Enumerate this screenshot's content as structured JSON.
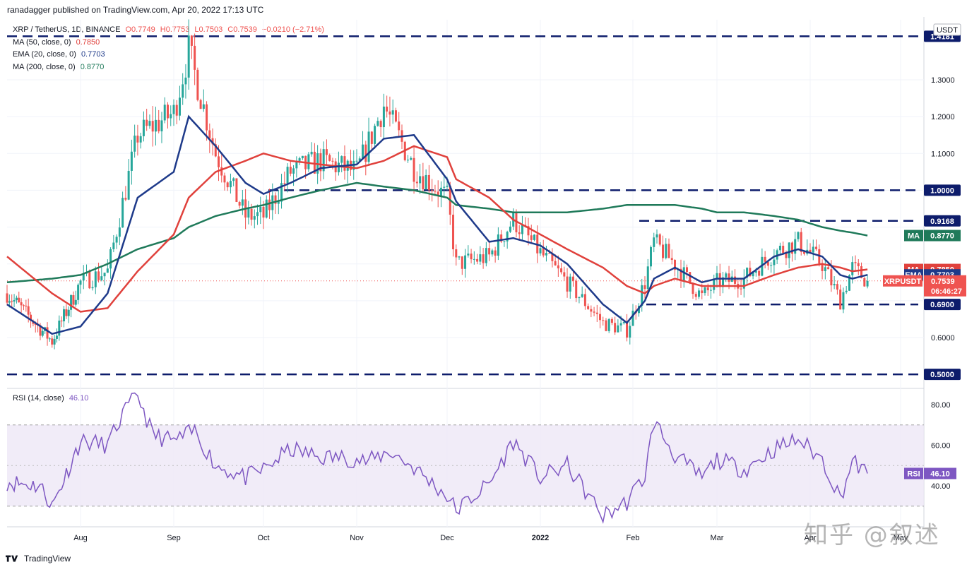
{
  "header": {
    "publisher": "ranadagger published on TradingView.com, Apr 20, 2022 17:13 UTC"
  },
  "legend": {
    "symbol": "XRP / TetherUS, 1D, BINANCE",
    "open": "O0.7749",
    "high": "H0.7753",
    "low": "L0.7503",
    "close": "C0.7539",
    "change": "−0.0210 (−2.71%)",
    "ma50": {
      "label": "MA (50, close, 0)",
      "value": "0.7850"
    },
    "ema20": {
      "label": "EMA (20, close, 0)",
      "value": "0.7703"
    },
    "ma200": {
      "label": "MA (200, close, 0)",
      "value": "0.8770"
    }
  },
  "currency_tag": "USDT",
  "rsi_legend": {
    "label": "RSI (14, close)",
    "value": "46.10"
  },
  "footer": {
    "brand": "TradingView"
  },
  "watermark": "知乎 @叙述",
  "colors": {
    "up": "#26a69a",
    "down": "#ef5350",
    "ema20": "#1e3a8a",
    "ma50": "#e0413c",
    "ma200": "#1f7a5a",
    "rsi": "#7e57c2",
    "rsi_band": "#ede7f6",
    "level_line": "#0d1c6b"
  },
  "chart_data": [
    {
      "type": "candlestick",
      "title": "XRP / TetherUS, 1D, BINANCE",
      "ylim": [
        0.47,
        1.43
      ],
      "y_ticks": [
        "1.3000",
        "1.2000",
        "1.1000",
        "1.0000",
        "0.6000"
      ],
      "x_ticks": [
        "Aug",
        "Sep",
        "Oct",
        "Nov",
        "Dec",
        "2022",
        "Feb",
        "Mar",
        "Apr",
        "May"
      ],
      "horizontal_levels": [
        {
          "value": 1.4181,
          "label": "1.4181"
        },
        {
          "value": 1.0,
          "label": "1.0000"
        },
        {
          "value": 0.9168,
          "label": "0.9168"
        },
        {
          "value": 0.69,
          "label": "0.6900"
        },
        {
          "value": 0.5,
          "label": "0.5000"
        }
      ],
      "price_tags": [
        {
          "name": "MA",
          "value": "0.8770",
          "series": "ma200"
        },
        {
          "name": "MA",
          "value": "0.7850",
          "series": "ma50"
        },
        {
          "name": "EMA",
          "value": "0.7703",
          "series": "ema20"
        },
        {
          "name": "XRPUSDT",
          "value": "0.7539",
          "countdown": "06:46:27",
          "series": "price"
        }
      ],
      "series_anchor_dates": [
        "2021-07-01",
        "2021-07-20",
        "2021-08-01",
        "2021-08-10",
        "2021-08-20",
        "2021-09-01",
        "2021-09-06",
        "2021-09-15",
        "2021-09-25",
        "2021-10-01",
        "2021-10-10",
        "2021-10-20",
        "2021-11-01",
        "2021-11-10",
        "2021-11-20",
        "2021-12-01",
        "2021-12-04",
        "2021-12-15",
        "2021-12-23",
        "2022-01-01",
        "2022-01-10",
        "2022-01-22",
        "2022-01-30",
        "2022-02-05",
        "2022-02-08",
        "2022-02-15",
        "2022-02-24",
        "2022-03-01",
        "2022-03-10",
        "2022-03-20",
        "2022-03-28",
        "2022-04-05",
        "2022-04-11",
        "2022-04-15",
        "2022-04-20"
      ],
      "close_series": [
        0.72,
        0.59,
        0.75,
        0.78,
        1.15,
        1.21,
        1.38,
        1.1,
        0.93,
        0.93,
        1.05,
        1.08,
        1.05,
        1.23,
        1.06,
        0.98,
        0.8,
        0.82,
        0.92,
        0.83,
        0.75,
        0.64,
        0.62,
        0.75,
        0.86,
        0.8,
        0.71,
        0.75,
        0.76,
        0.83,
        0.86,
        0.8,
        0.7,
        0.79,
        0.7539
      ],
      "ema20": [
        0.69,
        0.61,
        0.63,
        0.72,
        0.98,
        1.05,
        1.2,
        1.12,
        1.02,
        0.99,
        1.02,
        1.06,
        1.07,
        1.14,
        1.15,
        1.03,
        0.97,
        0.86,
        0.87,
        0.85,
        0.8,
        0.69,
        0.64,
        0.7,
        0.76,
        0.79,
        0.75,
        0.76,
        0.76,
        0.82,
        0.84,
        0.82,
        0.77,
        0.76,
        0.7703
      ],
      "ma50": [
        0.82,
        0.72,
        0.67,
        0.68,
        0.78,
        0.88,
        0.98,
        1.05,
        1.08,
        1.1,
        1.08,
        1.07,
        1.06,
        1.08,
        1.12,
        1.09,
        1.03,
        0.98,
        0.92,
        0.88,
        0.84,
        0.79,
        0.74,
        0.72,
        0.74,
        0.76,
        0.74,
        0.74,
        0.74,
        0.77,
        0.79,
        0.8,
        0.79,
        0.78,
        0.785
      ],
      "ma200": [
        0.75,
        0.76,
        0.77,
        0.8,
        0.84,
        0.87,
        0.9,
        0.93,
        0.95,
        0.96,
        0.98,
        1.0,
        1.02,
        1.01,
        1.0,
        0.98,
        0.96,
        0.95,
        0.94,
        0.94,
        0.94,
        0.95,
        0.96,
        0.96,
        0.96,
        0.96,
        0.95,
        0.94,
        0.94,
        0.93,
        0.92,
        0.9,
        0.89,
        0.885,
        0.877
      ]
    },
    {
      "type": "line",
      "title": "RSI (14, close)",
      "ylim": [
        20,
        90
      ],
      "y_ticks": [
        "80.00",
        "60.00",
        "40.00"
      ],
      "band": [
        30,
        70
      ],
      "midline": 50,
      "current": {
        "label": "RSI",
        "value": "46.10"
      },
      "series_anchor_dates": [
        "2021-07-01",
        "2021-07-15",
        "2021-07-20",
        "2021-08-01",
        "2021-08-10",
        "2021-08-15",
        "2021-08-20",
        "2021-08-25",
        "2021-09-01",
        "2021-09-08",
        "2021-09-15",
        "2021-09-25",
        "2021-10-01",
        "2021-10-10",
        "2021-10-20",
        "2021-10-28",
        "2021-11-05",
        "2021-11-12",
        "2021-11-20",
        "2021-12-01",
        "2021-12-04",
        "2021-12-15",
        "2021-12-23",
        "2022-01-01",
        "2022-01-10",
        "2022-01-22",
        "2022-01-30",
        "2022-02-05",
        "2022-02-08",
        "2022-02-15",
        "2022-02-24",
        "2022-03-01",
        "2022-03-10",
        "2022-03-20",
        "2022-03-28",
        "2022-04-05",
        "2022-04-11",
        "2022-04-15",
        "2022-04-20"
      ],
      "values": [
        42,
        40,
        30,
        62,
        60,
        75,
        85,
        65,
        62,
        67,
        50,
        44,
        48,
        58,
        54,
        54,
        52,
        57,
        49,
        35,
        28,
        41,
        62,
        44,
        50,
        25,
        32,
        45,
        72,
        55,
        44,
        53,
        48,
        58,
        63,
        53,
        34,
        52,
        46.1
      ]
    }
  ]
}
